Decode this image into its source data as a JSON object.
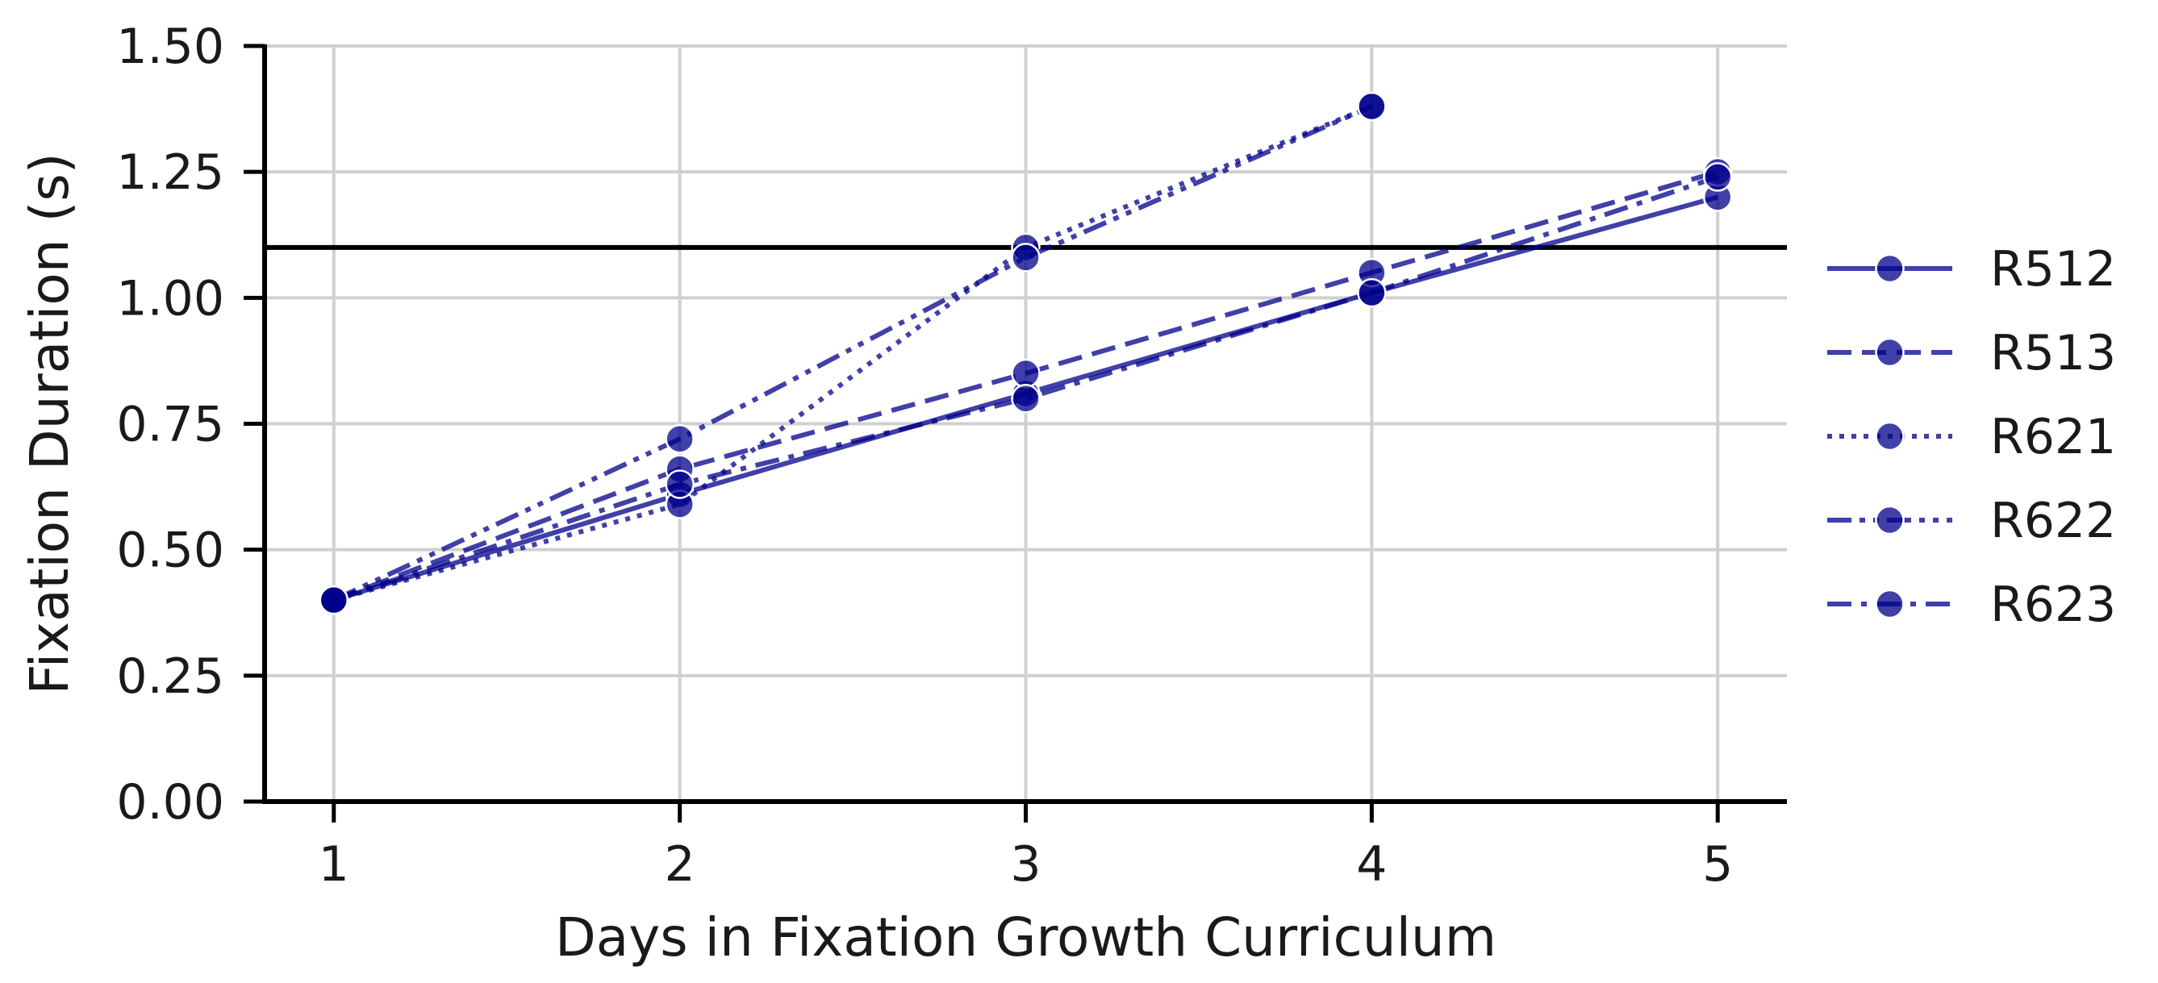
{
  "chart_data": {
    "type": "line",
    "title": "",
    "xlabel": "Days in Fixation Growth Curriculum",
    "ylabel": "Fixation Duration (s)",
    "xlim": [
      0.8,
      5.2
    ],
    "ylim": [
      0.0,
      1.5
    ],
    "x_ticks": [
      1,
      2,
      3,
      4,
      5
    ],
    "x_tick_labels": [
      "1",
      "2",
      "3",
      "4",
      "5"
    ],
    "y_ticks": [
      0.0,
      0.25,
      0.5,
      0.75,
      1.0,
      1.25,
      1.5
    ],
    "y_tick_labels": [
      "0.00",
      "0.25",
      "0.50",
      "0.75",
      "1.00",
      "1.25",
      "1.50"
    ],
    "grid": true,
    "legend_position": "right",
    "reference_line": {
      "y": 1.1,
      "color": "#000000"
    },
    "series_color": "#00008b",
    "series": [
      {
        "name": "R512",
        "dash": "solid",
        "points": [
          [
            1,
            0.4
          ],
          [
            2,
            0.61
          ],
          [
            3,
            0.81
          ],
          [
            4,
            1.01
          ],
          [
            5,
            1.2
          ]
        ]
      },
      {
        "name": "R513",
        "dash": "dashed",
        "points": [
          [
            1,
            0.4
          ],
          [
            2,
            0.66
          ],
          [
            3,
            0.85
          ],
          [
            4,
            1.05
          ],
          [
            5,
            1.25
          ]
        ]
      },
      {
        "name": "R621",
        "dash": "dotted",
        "points": [
          [
            1,
            0.4
          ],
          [
            2,
            0.59
          ],
          [
            3,
            1.1
          ],
          [
            4,
            1.38
          ]
        ]
      },
      {
        "name": "R622",
        "dash": "dashdotdot",
        "points": [
          [
            1,
            0.4
          ],
          [
            2,
            0.72
          ],
          [
            3,
            1.08
          ],
          [
            4,
            1.38
          ]
        ]
      },
      {
        "name": "R623",
        "dash": "dashdot",
        "points": [
          [
            1,
            0.4
          ],
          [
            2,
            0.63
          ],
          [
            3,
            0.8
          ],
          [
            4,
            1.01
          ],
          [
            5,
            1.24
          ]
        ]
      }
    ]
  }
}
